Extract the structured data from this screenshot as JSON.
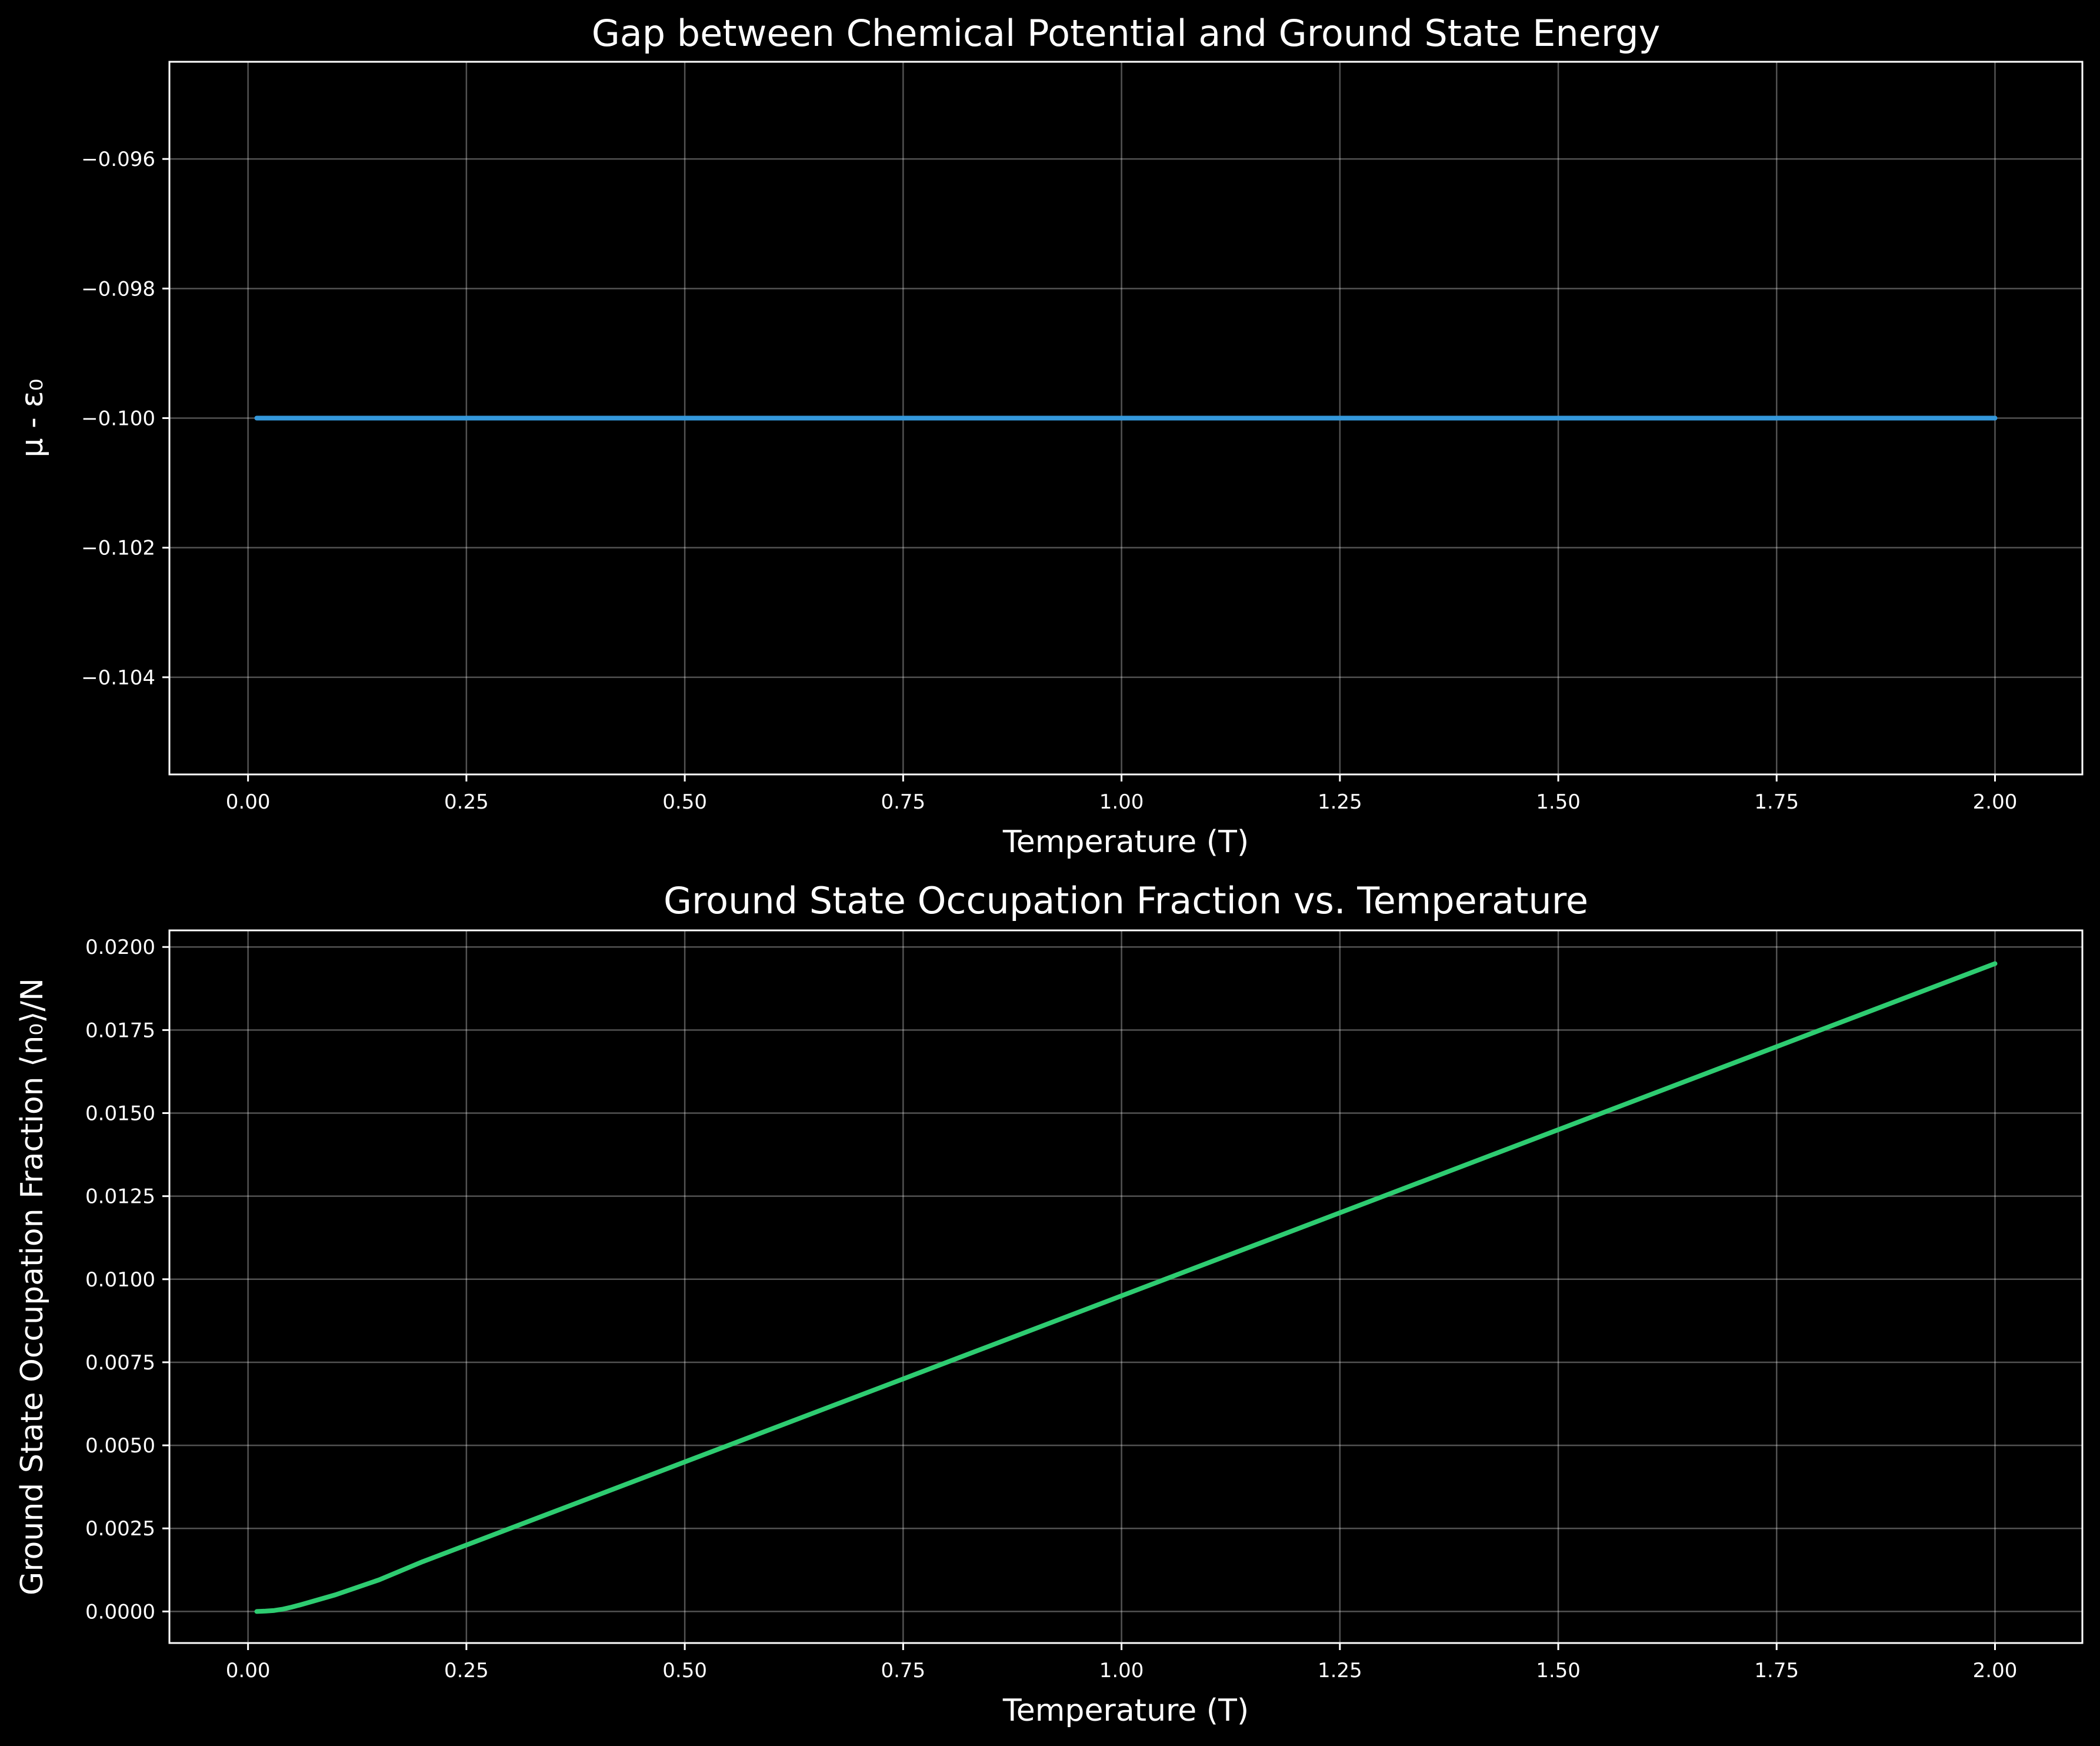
{
  "colors": {
    "background": "#000000",
    "text": "#ffffff",
    "series_top": "#3498db",
    "series_bottom": "#2ecc71"
  },
  "chart_data": [
    {
      "type": "line",
      "title": "Gap between Chemical Potential and Ground State Energy",
      "xlabel": "Temperature (T)",
      "ylabel": "μ - ε₀",
      "xlim": [
        -0.09,
        2.1
      ],
      "ylim": [
        -0.1055,
        -0.0945
      ],
      "xticks": [
        0.0,
        0.25,
        0.5,
        0.75,
        1.0,
        1.25,
        1.5,
        1.75,
        2.0
      ],
      "xtick_labels": [
        "0.00",
        "0.25",
        "0.50",
        "0.75",
        "1.00",
        "1.25",
        "1.50",
        "1.75",
        "2.00"
      ],
      "yticks": [
        -0.096,
        -0.098,
        -0.1,
        -0.102,
        -0.104
      ],
      "ytick_labels": [
        "−0.096",
        "−0.098",
        "−0.100",
        "−0.102",
        "−0.104"
      ],
      "grid": true,
      "series": [
        {
          "color": "#3498db",
          "x": [
            0.01,
            2.0
          ],
          "y": [
            -0.1,
            -0.1
          ]
        }
      ]
    },
    {
      "type": "line",
      "title": "Ground State Occupation Fraction vs. Temperature",
      "xlabel": "Temperature (T)",
      "ylabel": "Ground State Occupation Fraction ⟨n₀⟩/N",
      "xlim": [
        -0.09,
        2.1
      ],
      "ylim": [
        -0.00095,
        0.0205
      ],
      "xticks": [
        0.0,
        0.25,
        0.5,
        0.75,
        1.0,
        1.25,
        1.5,
        1.75,
        2.0
      ],
      "xtick_labels": [
        "0.00",
        "0.25",
        "0.50",
        "0.75",
        "1.00",
        "1.25",
        "1.50",
        "1.75",
        "2.00"
      ],
      "yticks": [
        0.0,
        0.0025,
        0.005,
        0.0075,
        0.01,
        0.0125,
        0.015,
        0.0175,
        0.02
      ],
      "ytick_labels": [
        "0.0000",
        "0.0025",
        "0.0050",
        "0.0075",
        "0.0100",
        "0.0125",
        "0.0150",
        "0.0175",
        "0.0200"
      ],
      "grid": true,
      "series": [
        {
          "color": "#2ecc71",
          "x": [
            0.01,
            0.02,
            0.03,
            0.04,
            0.05,
            0.06,
            0.08,
            0.1,
            0.15,
            0.2,
            0.25,
            0.5,
            0.75,
            1.0,
            1.25,
            1.5,
            1.75,
            2.0
          ],
          "y": [
            0.0,
            1e-05,
            3e-05,
            7e-05,
            0.00013,
            0.0002,
            0.00035,
            0.0005,
            0.00095,
            0.0015,
            0.002,
            0.0045,
            0.007,
            0.0095,
            0.012,
            0.0145,
            0.017,
            0.0195
          ]
        }
      ]
    }
  ]
}
